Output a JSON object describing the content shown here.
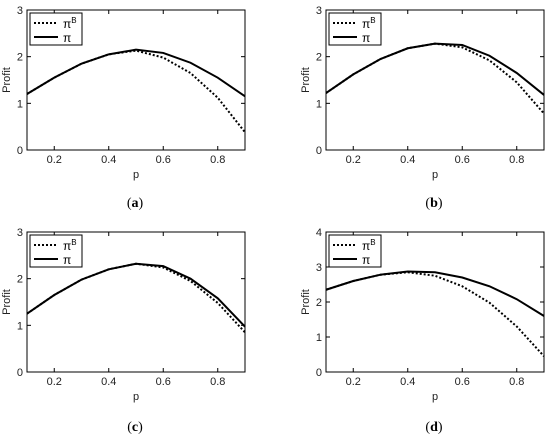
{
  "chart_data": [
    {
      "type": "line",
      "xlabel": "p",
      "ylabel": "Profit",
      "xlim": [
        0.1,
        0.9
      ],
      "ylim": [
        0,
        3
      ],
      "x_ticks": [
        "0.2",
        "0.4",
        "0.6",
        "0.8"
      ],
      "y_ticks": [
        "0",
        "1",
        "2",
        "3"
      ],
      "legend": {
        "position": "top-left",
        "entries": [
          {
            "base": "π",
            "sup": "B",
            "style": "dotted"
          },
          {
            "base": "π",
            "sup": "",
            "style": "solid"
          }
        ]
      },
      "caption": {
        "open": "(",
        "letter": "a",
        "close": ")"
      },
      "series": [
        {
          "name": "πB",
          "style": "dotted",
          "x": [
            0.1,
            0.2,
            0.3,
            0.4,
            0.5,
            0.6,
            0.7,
            0.8,
            0.9
          ],
          "y": [
            1.2,
            1.55,
            1.85,
            2.05,
            2.13,
            1.98,
            1.65,
            1.12,
            0.38
          ]
        },
        {
          "name": "π",
          "style": "solid",
          "x": [
            0.1,
            0.2,
            0.3,
            0.4,
            0.5,
            0.6,
            0.7,
            0.8,
            0.9
          ],
          "y": [
            1.2,
            1.55,
            1.85,
            2.05,
            2.15,
            2.08,
            1.87,
            1.55,
            1.15
          ]
        }
      ]
    },
    {
      "type": "line",
      "xlabel": "p",
      "ylabel": "Profit",
      "xlim": [
        0.1,
        0.9
      ],
      "ylim": [
        0,
        3
      ],
      "x_ticks": [
        "0.2",
        "0.4",
        "0.6",
        "0.8"
      ],
      "y_ticks": [
        "0",
        "1",
        "2",
        "3"
      ],
      "legend": {
        "position": "top-left",
        "entries": [
          {
            "base": "π",
            "sup": "B",
            "style": "dotted"
          },
          {
            "base": "π",
            "sup": "",
            "style": "solid"
          }
        ]
      },
      "caption": {
        "open": "(",
        "letter": "b",
        "close": ")"
      },
      "series": [
        {
          "name": "πB",
          "style": "dotted",
          "x": [
            0.1,
            0.2,
            0.3,
            0.4,
            0.5,
            0.6,
            0.7,
            0.8,
            0.9
          ],
          "y": [
            1.22,
            1.62,
            1.95,
            2.18,
            2.28,
            2.2,
            1.92,
            1.45,
            0.78
          ]
        },
        {
          "name": "π",
          "style": "solid",
          "x": [
            0.1,
            0.2,
            0.3,
            0.4,
            0.5,
            0.6,
            0.7,
            0.8,
            0.9
          ],
          "y": [
            1.22,
            1.62,
            1.95,
            2.18,
            2.28,
            2.25,
            2.02,
            1.65,
            1.18
          ]
        }
      ]
    },
    {
      "type": "line",
      "xlabel": "p",
      "ylabel": "Profit",
      "xlim": [
        0.1,
        0.9
      ],
      "ylim": [
        0,
        3
      ],
      "x_ticks": [
        "0.2",
        "0.4",
        "0.6",
        "0.8"
      ],
      "y_ticks": [
        "0",
        "1",
        "2",
        "3"
      ],
      "legend": {
        "position": "top-left",
        "entries": [
          {
            "base": "π",
            "sup": "B",
            "style": "dotted"
          },
          {
            "base": "π",
            "sup": "",
            "style": "solid"
          }
        ]
      },
      "caption": {
        "open": "(",
        "letter": "c",
        "close": ")"
      },
      "series": [
        {
          "name": "πB",
          "style": "dotted",
          "x": [
            0.1,
            0.2,
            0.3,
            0.4,
            0.5,
            0.6,
            0.7,
            0.8,
            0.9
          ],
          "y": [
            1.25,
            1.65,
            1.98,
            2.2,
            2.32,
            2.24,
            1.95,
            1.48,
            0.85
          ]
        },
        {
          "name": "π",
          "style": "solid",
          "x": [
            0.1,
            0.2,
            0.3,
            0.4,
            0.5,
            0.6,
            0.7,
            0.8,
            0.9
          ],
          "y": [
            1.25,
            1.65,
            1.98,
            2.2,
            2.32,
            2.27,
            2.0,
            1.58,
            0.97
          ]
        }
      ]
    },
    {
      "type": "line",
      "xlabel": "p",
      "ylabel": "Profit",
      "xlim": [
        0.1,
        0.9
      ],
      "ylim": [
        0,
        4
      ],
      "x_ticks": [
        "0.2",
        "0.4",
        "0.6",
        "0.8"
      ],
      "y_ticks": [
        "0",
        "1",
        "2",
        "3",
        "4"
      ],
      "legend": {
        "position": "top-left",
        "entries": [
          {
            "base": "π",
            "sup": "B",
            "style": "dotted"
          },
          {
            "base": "π",
            "sup": "",
            "style": "solid"
          }
        ]
      },
      "caption": {
        "open": "(",
        "letter": "d",
        "close": ")"
      },
      "series": [
        {
          "name": "πB",
          "style": "dotted",
          "x": [
            0.1,
            0.2,
            0.3,
            0.4,
            0.5,
            0.6,
            0.7,
            0.8,
            0.9
          ],
          "y": [
            2.35,
            2.6,
            2.78,
            2.85,
            2.75,
            2.45,
            1.98,
            1.3,
            0.45
          ]
        },
        {
          "name": "π",
          "style": "solid",
          "x": [
            0.1,
            0.2,
            0.3,
            0.4,
            0.5,
            0.6,
            0.7,
            0.8,
            0.9
          ],
          "y": [
            2.35,
            2.6,
            2.78,
            2.87,
            2.85,
            2.7,
            2.45,
            2.08,
            1.6
          ]
        }
      ]
    }
  ]
}
